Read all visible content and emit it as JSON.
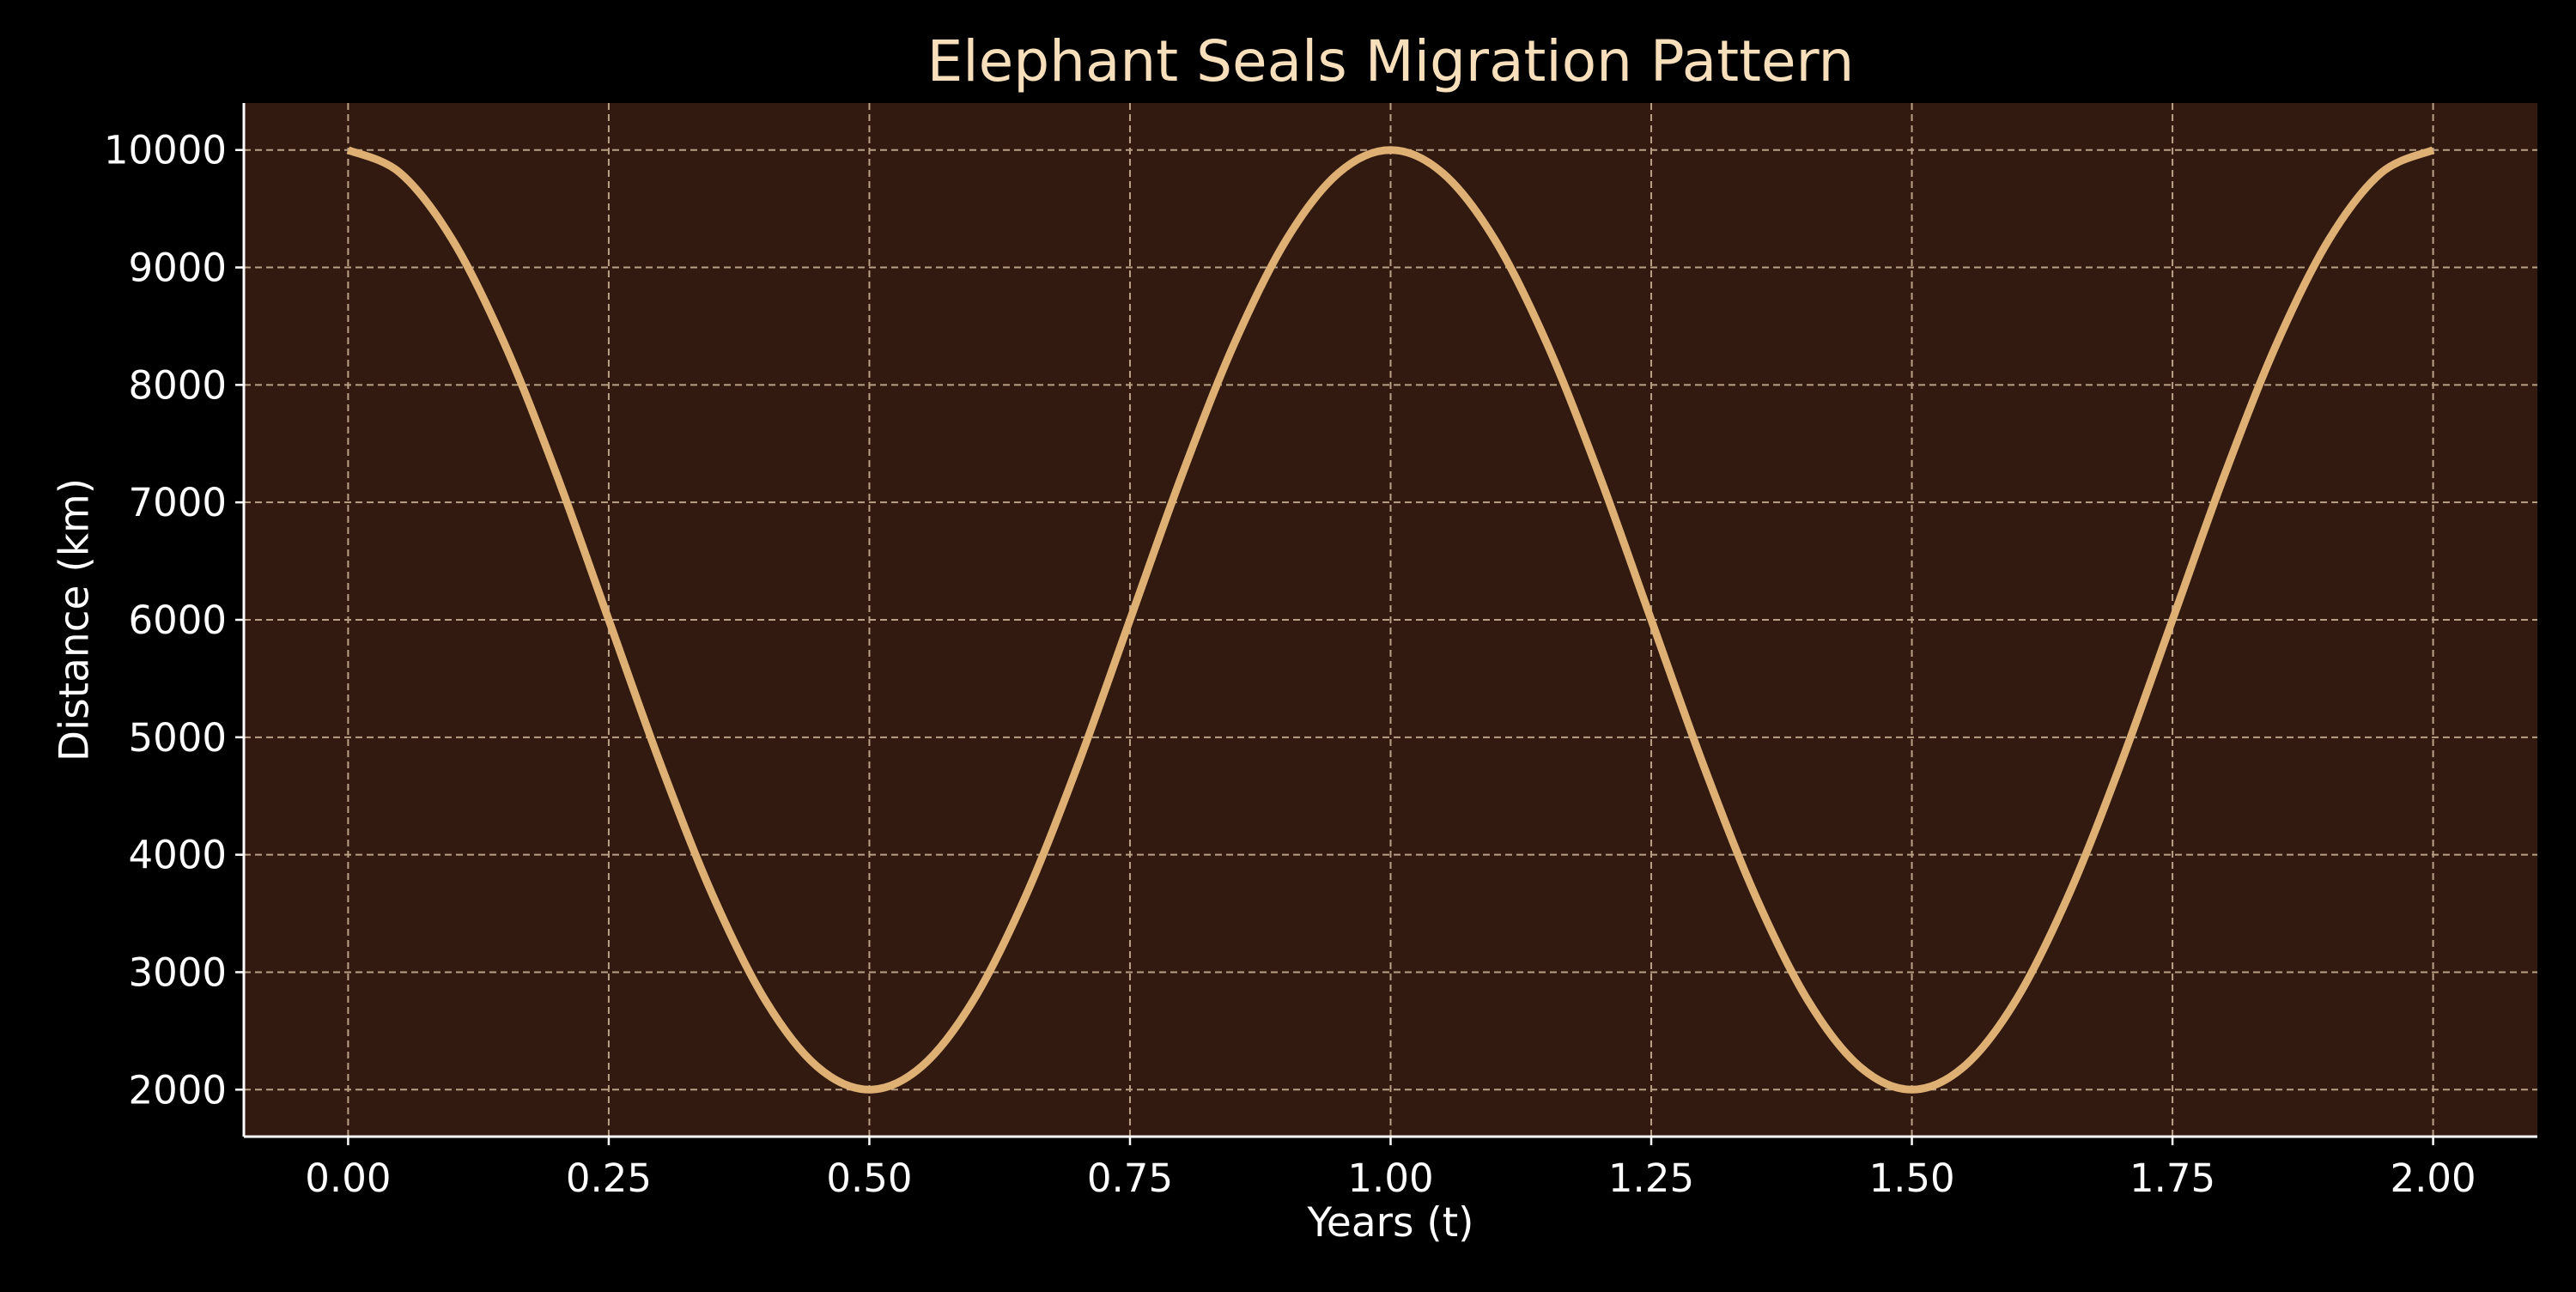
{
  "chart_data": {
    "type": "line",
    "title": "Elephant Seals Migration Pattern",
    "xlabel": "Years (t)",
    "ylabel": "Distance (km)",
    "xlim": [
      -0.1,
      2.1
    ],
    "ylim": [
      1600,
      10400
    ],
    "x_ticks": [
      0.0,
      0.25,
      0.5,
      0.75,
      1.0,
      1.25,
      1.5,
      1.75,
      2.0
    ],
    "x_tick_labels": [
      "0.00",
      "0.25",
      "0.50",
      "0.75",
      "1.00",
      "1.25",
      "1.50",
      "1.75",
      "2.00"
    ],
    "y_ticks": [
      2000,
      3000,
      4000,
      5000,
      6000,
      7000,
      8000,
      9000,
      10000
    ],
    "y_tick_labels": [
      "2000",
      "3000",
      "4000",
      "5000",
      "6000",
      "7000",
      "8000",
      "9000",
      "10000"
    ],
    "grid": true,
    "series": [
      {
        "x": [
          0,
          0.05,
          0.1,
          0.15,
          0.2,
          0.25,
          0.3,
          0.35,
          0.4,
          0.45,
          0.5,
          0.55,
          0.6,
          0.65,
          0.7,
          0.75,
          0.8,
          0.85,
          0.9,
          0.95,
          1.0,
          1.05,
          1.1,
          1.15,
          1.2,
          1.25,
          1.3,
          1.35,
          1.4,
          1.45,
          1.5,
          1.55,
          1.6,
          1.65,
          1.7,
          1.75,
          1.8,
          1.85,
          1.9,
          1.95,
          2.0
        ],
        "y": [
          10000,
          9804,
          9236,
          8351,
          7236,
          6000,
          4764,
          3649,
          2764,
          2196,
          2000,
          2196,
          2764,
          3649,
          4764,
          6000,
          7236,
          8351,
          9236,
          9804,
          10000,
          9804,
          9236,
          8351,
          7236,
          6000,
          4764,
          3649,
          2764,
          2196,
          2000,
          2196,
          2764,
          3649,
          4764,
          6000,
          7236,
          8351,
          9236,
          9804,
          10000
        ],
        "color": "#deb074"
      }
    ],
    "colors": {
      "figure_background": "#000000",
      "plot_background": "#331a10",
      "title": "#f8dfbb",
      "text": "#ffffff",
      "grid": "#b8a187",
      "spine": "#ffffff"
    }
  }
}
